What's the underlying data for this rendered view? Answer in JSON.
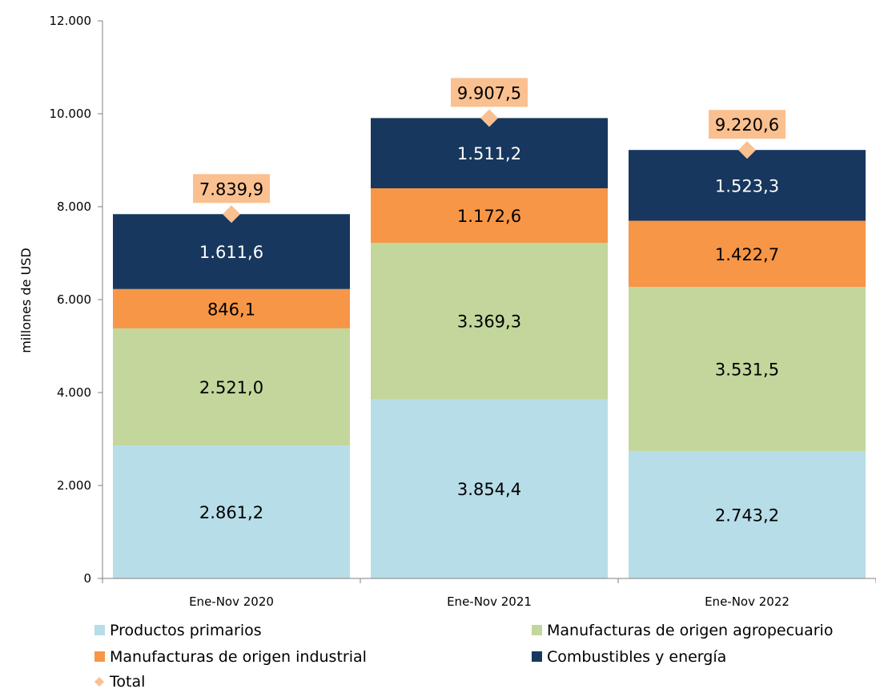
{
  "chart_data": {
    "type": "bar",
    "stacked": true,
    "title": "",
    "xlabel": "",
    "ylabel": "millones de  USD",
    "ylim": [
      0,
      12000
    ],
    "yticks": [
      0,
      2000,
      4000,
      6000,
      8000,
      10000,
      12000
    ],
    "ytick_labels": [
      "0",
      "2.000",
      "4.000",
      "6.000",
      "8.000",
      "10.000",
      "12.000"
    ],
    "categories": [
      "Ene-Nov 2020",
      "Ene-Nov 2021",
      "Ene-Nov 2022"
    ],
    "series": [
      {
        "name": "Productos primarios",
        "color": "#b7dde8",
        "label_color": "#000000",
        "values": [
          2861.2,
          3854.4,
          2743.2
        ],
        "labels": [
          "2.861,2",
          "3.854,4",
          "2.743,2"
        ]
      },
      {
        "name": "Manufacturas de origen agropecuario",
        "color": "#c3d69b",
        "label_color": "#000000",
        "values": [
          2521.0,
          3369.3,
          3531.5
        ],
        "labels": [
          "2.521,0",
          "3.369,3",
          "3.531,5"
        ]
      },
      {
        "name": "Manufacturas de origen industrial",
        "color": "#f79646",
        "label_color": "#000000",
        "values": [
          846.1,
          1172.6,
          1422.7
        ],
        "labels": [
          "846,1",
          "1.172,6",
          "1.422,7"
        ]
      },
      {
        "name": "Combustibles y energía",
        "color": "#17375e",
        "label_color": "#ffffff",
        "values": [
          1611.6,
          1511.2,
          1523.3
        ],
        "labels": [
          "1.611,6",
          "1.511,2",
          "1.523,3"
        ]
      }
    ],
    "total": {
      "name": "Total",
      "marker": "diamond",
      "color": "#fac090",
      "values": [
        7839.9,
        9907.5,
        9220.6
      ],
      "labels": [
        "7.839,9",
        "9.907,5",
        "9.220,6"
      ]
    },
    "legend": {
      "position": "bottom",
      "items": [
        {
          "label": "Productos primarios",
          "color": "#b7dde8",
          "marker": "square"
        },
        {
          "label": "Manufacturas de origen agropecuario",
          "color": "#c3d69b",
          "marker": "square"
        },
        {
          "label": "Manufacturas de origen industrial",
          "color": "#f79646",
          "marker": "square"
        },
        {
          "label": "Combustibles y energía",
          "color": "#17375e",
          "marker": "square"
        },
        {
          "label": "Total",
          "color": "#fac090",
          "marker": "diamond"
        }
      ]
    },
    "grid": false
  }
}
